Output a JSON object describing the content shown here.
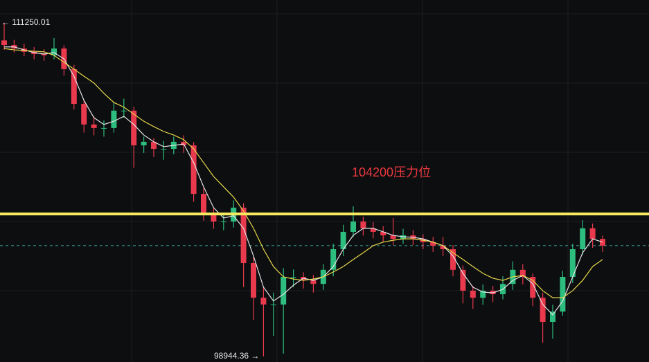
{
  "chart_data": {
    "type": "candlestick",
    "ylim": [
      98740,
      112090
    ],
    "up_color": "#2dbd7f",
    "down_color": "#e8394d",
    "last_price_line_color": "#3aa89a",
    "ohlc": [
      [
        110600,
        111250.01,
        110250,
        110430
      ],
      [
        110430,
        110620,
        110150,
        110300
      ],
      [
        110300,
        110480,
        110020,
        110180
      ],
      [
        110180,
        110360,
        109900,
        110100
      ],
      [
        110100,
        110280,
        109850,
        110050
      ],
      [
        110050,
        110690,
        109900,
        110300
      ],
      [
        110300,
        110420,
        109300,
        109540
      ],
      [
        109540,
        109700,
        108050,
        108260
      ],
      [
        108260,
        108420,
        107200,
        107500
      ],
      [
        107500,
        107800,
        107100,
        107370
      ],
      [
        107370,
        107650,
        107050,
        107370
      ],
      [
        107370,
        108300,
        107200,
        108010
      ],
      [
        108010,
        108450,
        107750,
        108010
      ],
      [
        108010,
        108150,
        105900,
        106730
      ],
      [
        106730,
        107050,
        106450,
        106860
      ],
      [
        106860,
        107000,
        106300,
        106600
      ],
      [
        106600,
        106900,
        106200,
        106600
      ],
      [
        106600,
        107050,
        106400,
        106860
      ],
      [
        106860,
        107100,
        106450,
        106730
      ],
      [
        106730,
        106850,
        104650,
        104940
      ],
      [
        104940,
        105150,
        103950,
        104180
      ],
      [
        104180,
        104400,
        103650,
        103920
      ],
      [
        103920,
        104200,
        103600,
        103920
      ],
      [
        103920,
        104700,
        103700,
        104430
      ],
      [
        104430,
        104600,
        101500,
        102390
      ],
      [
        102390,
        102600,
        100300,
        101110
      ],
      [
        101110,
        101500,
        98944.36,
        100860
      ],
      [
        100860,
        101300,
        99700,
        100860
      ],
      [
        100860,
        102200,
        99050,
        101880
      ],
      [
        101880,
        102150,
        101500,
        101880
      ],
      [
        101880,
        102050,
        101450,
        101750
      ],
      [
        101750,
        101950,
        101300,
        101620
      ],
      [
        101620,
        102350,
        101400,
        102140
      ],
      [
        102140,
        103100,
        101900,
        102900
      ],
      [
        102900,
        103800,
        102650,
        103540
      ],
      [
        103540,
        104480,
        103350,
        103920
      ],
      [
        103920,
        104100,
        103400,
        103670
      ],
      [
        103670,
        103900,
        103300,
        103540
      ],
      [
        103540,
        103750,
        103150,
        103410
      ],
      [
        103410,
        104050,
        103050,
        103280
      ],
      [
        103280,
        103650,
        103100,
        103410
      ],
      [
        103410,
        103600,
        103050,
        103280
      ],
      [
        103280,
        103450,
        102900,
        103160
      ],
      [
        103160,
        103350,
        102800,
        103030
      ],
      [
        103030,
        103350,
        102650,
        102900
      ],
      [
        102900,
        103050,
        101900,
        102140
      ],
      [
        102140,
        102300,
        100900,
        101370
      ],
      [
        101370,
        101550,
        100700,
        101110
      ],
      [
        101110,
        101600,
        100850,
        101370
      ],
      [
        101370,
        101550,
        100950,
        101240
      ],
      [
        101240,
        101900,
        101050,
        101620
      ],
      [
        101620,
        102450,
        101400,
        102140
      ],
      [
        102140,
        102350,
        101600,
        101880
      ],
      [
        101880,
        102000,
        100800,
        101110
      ],
      [
        101110,
        101300,
        99450,
        100220
      ],
      [
        100220,
        100850,
        99600,
        100600
      ],
      [
        100600,
        102100,
        100450,
        101880
      ],
      [
        101880,
        103100,
        101650,
        102900
      ],
      [
        102900,
        103970,
        102700,
        103670
      ],
      [
        103670,
        103850,
        102950,
        103280
      ],
      [
        103280,
        103400,
        102800,
        103030
      ]
    ],
    "moving_averages": [
      {
        "color": "#e6e6e6",
        "values": [
          110360,
          110360,
          110250,
          110150,
          110100,
          110150,
          109920,
          109280,
          108390,
          107750,
          107500,
          107620,
          107800,
          107500,
          107110,
          106860,
          106680,
          106730,
          106780,
          106090,
          105200,
          104430,
          104050,
          104130,
          103670,
          102650,
          101500,
          100990,
          101240,
          101570,
          101830,
          101750,
          101880,
          102260,
          102900,
          103410,
          103670,
          103670,
          103540,
          103410,
          103360,
          103340,
          103280,
          103160,
          103030,
          102650,
          102010,
          101500,
          101320,
          101290,
          101420,
          101750,
          101930,
          101630,
          100860,
          100480,
          100990,
          101880,
          102770,
          103280,
          103160
        ]
      },
      {
        "color": "#e6d84a",
        "values": [
          110300,
          110250,
          110230,
          110200,
          110180,
          110050,
          109790,
          109540,
          109280,
          109030,
          108650,
          108310,
          108140,
          107880,
          107620,
          107420,
          107240,
          107110,
          106940,
          106600,
          106090,
          105580,
          105200,
          104820,
          104310,
          103670,
          102900,
          102260,
          101880,
          101800,
          101750,
          101800,
          101880,
          102060,
          102260,
          102520,
          102770,
          103030,
          103160,
          103230,
          103280,
          103280,
          103230,
          103160,
          103030,
          102770,
          102520,
          102260,
          102010,
          101830,
          101750,
          101880,
          101930,
          101750,
          101370,
          101110,
          101110,
          101370,
          101750,
          102260,
          102520
        ]
      }
    ],
    "max_marker": {
      "value": 111250.01,
      "label": "← 111250.01"
    },
    "min_marker": {
      "value": 98944.36,
      "label": "98944.36 →"
    },
    "resistance": {
      "value": 104200,
      "label": "104200压力位",
      "color": "#f7ea5e",
      "label_color": "#e8393f"
    }
  }
}
